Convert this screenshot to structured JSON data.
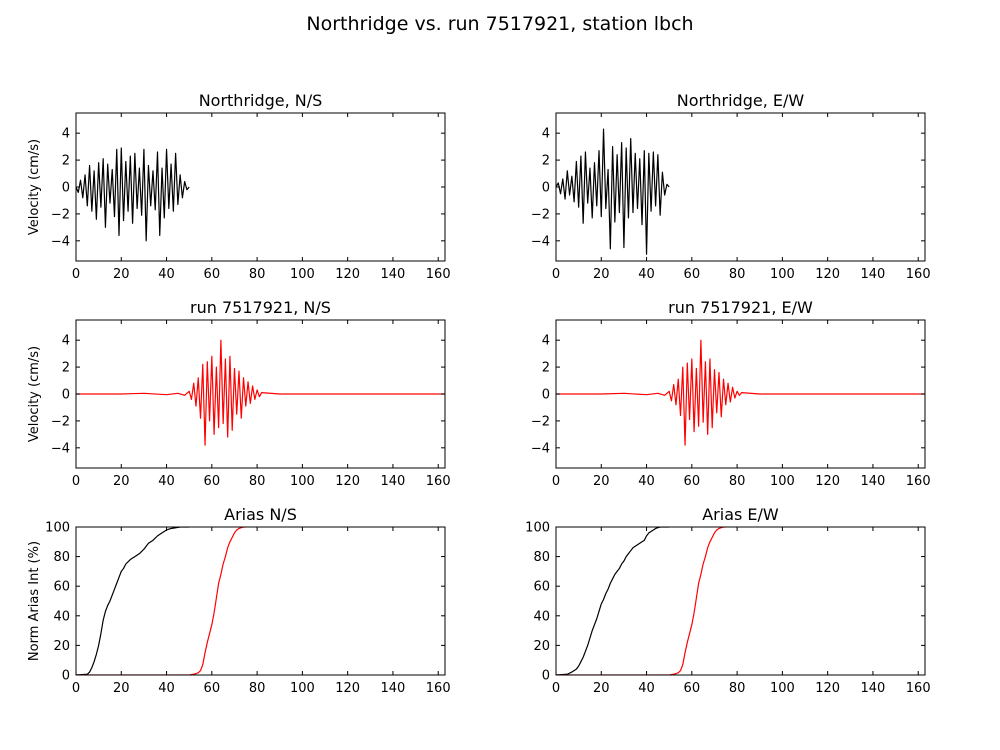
{
  "figure": {
    "title": "Northridge vs. run 7517921, station lbch"
  },
  "colors": {
    "recorded": "#000000",
    "simulated": "#ff0000",
    "axes": "#000000",
    "background": "#ffffff"
  },
  "chart_data": [
    {
      "type": "line",
      "title": "Northridge, N/S",
      "xlabel": "",
      "ylabel": "Velocity (cm/s)",
      "xlim": [
        0,
        163
      ],
      "ylim": [
        -5.5,
        5.5
      ],
      "xticks": [
        0,
        20,
        40,
        60,
        80,
        100,
        120,
        140,
        160
      ],
      "yticks": [
        -4,
        -2,
        0,
        2,
        4
      ],
      "grid": false,
      "legend": "none",
      "series": [
        {
          "color": "#000000",
          "x": [
            0,
            1,
            2,
            3,
            4,
            5,
            6,
            7,
            8,
            9,
            10,
            11,
            12,
            13,
            14,
            15,
            16,
            17,
            18,
            19,
            20,
            21,
            22,
            23,
            24,
            25,
            26,
            27,
            28,
            29,
            30,
            31,
            32,
            33,
            34,
            35,
            36,
            37,
            38,
            39,
            40,
            41,
            42,
            43,
            44,
            45,
            46,
            47,
            48,
            49,
            50
          ],
          "y": [
            0,
            -0.4,
            0.5,
            -0.8,
            0.9,
            -1.4,
            1.6,
            -1.8,
            1.2,
            -2.4,
            1.8,
            -1.5,
            2.1,
            -3.0,
            1.7,
            -1.2,
            1.3,
            -2.2,
            2.8,
            -3.6,
            2.9,
            -2.5,
            1.9,
            -1.8,
            2.3,
            -2.7,
            2.5,
            -1.6,
            1.4,
            -2.1,
            2.8,
            -4.0,
            1.6,
            -1.4,
            1.2,
            -1.7,
            2.6,
            -3.6,
            1.4,
            -2.3,
            2.8,
            -1.6,
            1.7,
            -1.8,
            2.5,
            -1.3,
            0.9,
            -0.8,
            0.4,
            -0.2,
            0.0
          ]
        }
      ]
    },
    {
      "type": "line",
      "title": "Northridge, E/W",
      "xlabel": "",
      "ylabel": "",
      "xlim": [
        0,
        163
      ],
      "ylim": [
        -5.5,
        5.5
      ],
      "xticks": [
        0,
        20,
        40,
        60,
        80,
        100,
        120,
        140,
        160
      ],
      "yticks": [
        -4,
        -2,
        0,
        2,
        4
      ],
      "grid": false,
      "legend": "none",
      "series": [
        {
          "color": "#000000",
          "x": [
            0,
            1,
            2,
            3,
            4,
            5,
            6,
            7,
            8,
            9,
            10,
            11,
            12,
            13,
            14,
            15,
            16,
            17,
            18,
            19,
            20,
            21,
            22,
            23,
            24,
            25,
            26,
            27,
            28,
            29,
            30,
            31,
            32,
            33,
            34,
            35,
            36,
            37,
            38,
            39,
            40,
            41,
            42,
            43,
            44,
            45,
            46,
            47,
            48,
            49,
            50
          ],
          "y": [
            0,
            0.3,
            -0.5,
            0.6,
            -0.9,
            1.2,
            -0.6,
            0.8,
            -1.1,
            1.9,
            -1.5,
            2.3,
            -2.7,
            2.6,
            -1.2,
            1.4,
            -2.3,
            1.8,
            -1.4,
            2.7,
            -2.2,
            4.3,
            -1.6,
            1.3,
            -4.6,
            3.0,
            -2.6,
            2.4,
            -1.9,
            3.3,
            -4.5,
            2.9,
            -2.3,
            3.6,
            -1.9,
            2.5,
            -1.6,
            2.1,
            -2.8,
            2.7,
            -5.0,
            2.5,
            -1.8,
            2.6,
            -1.4,
            2.4,
            -2.1,
            1.1,
            -0.6,
            0.2,
            0.0
          ]
        }
      ]
    },
    {
      "type": "line",
      "title": "run 7517921, N/S",
      "xlabel": "",
      "ylabel": "Velocity (cm/s)",
      "xlim": [
        0,
        163
      ],
      "ylim": [
        -5.5,
        5.5
      ],
      "xticks": [
        0,
        20,
        40,
        60,
        80,
        100,
        120,
        140,
        160
      ],
      "yticks": [
        -4,
        -2,
        0,
        2,
        4
      ],
      "grid": false,
      "legend": "none",
      "series": [
        {
          "color": "#ff0000",
          "x": [
            0,
            20,
            30,
            40,
            45,
            48,
            50,
            51,
            52,
            53,
            54,
            55,
            56,
            57,
            58,
            59,
            60,
            61,
            62,
            63,
            64,
            65,
            66,
            67,
            68,
            69,
            70,
            71,
            72,
            73,
            74,
            75,
            76,
            77,
            78,
            79,
            80,
            81,
            82,
            90,
            100,
            120,
            140,
            163
          ],
          "y": [
            0,
            0.0,
            0.05,
            -0.05,
            0.05,
            -0.1,
            0.2,
            -0.4,
            0.8,
            -0.9,
            1.2,
            -1.8,
            2.2,
            -3.8,
            2.4,
            -2.0,
            2.8,
            -3.0,
            2.0,
            -2.5,
            4.0,
            -2.2,
            2.6,
            -3.2,
            2.8,
            -2.7,
            1.9,
            -1.5,
            1.7,
            -1.8,
            1.2,
            -0.9,
            0.9,
            -0.7,
            0.6,
            -0.4,
            0.3,
            -0.2,
            0.1,
            0.0,
            0.0,
            0.0,
            0.0,
            0.0
          ]
        }
      ]
    },
    {
      "type": "line",
      "title": "run 7517921, E/W",
      "xlabel": "",
      "ylabel": "",
      "xlim": [
        0,
        163
      ],
      "ylim": [
        -5.5,
        5.5
      ],
      "xticks": [
        0,
        20,
        40,
        60,
        80,
        100,
        120,
        140,
        160
      ],
      "yticks": [
        -4,
        -2,
        0,
        2,
        4
      ],
      "grid": false,
      "legend": "none",
      "series": [
        {
          "color": "#ff0000",
          "x": [
            0,
            20,
            30,
            40,
            45,
            48,
            50,
            51,
            52,
            53,
            54,
            55,
            56,
            57,
            58,
            59,
            60,
            61,
            62,
            63,
            64,
            65,
            66,
            67,
            68,
            69,
            70,
            71,
            72,
            73,
            74,
            75,
            76,
            77,
            78,
            79,
            80,
            81,
            82,
            90,
            100,
            120,
            140,
            163
          ],
          "y": [
            0,
            0.0,
            0.05,
            -0.05,
            0.05,
            -0.1,
            0.2,
            -0.5,
            0.7,
            -0.8,
            1.1,
            -1.6,
            2.0,
            -3.8,
            2.3,
            -1.9,
            2.6,
            -2.8,
            1.9,
            -2.4,
            4.0,
            -2.1,
            2.4,
            -3.0,
            2.6,
            -2.5,
            1.8,
            -1.4,
            1.6,
            -1.7,
            1.1,
            -0.8,
            0.8,
            -0.6,
            0.5,
            -0.3,
            0.2,
            -0.1,
            0.1,
            0.0,
            0.0,
            0.0,
            0.0,
            0.0
          ]
        }
      ]
    },
    {
      "type": "line",
      "title": "Arias N/S",
      "xlabel": "",
      "ylabel": "Norm Arias Int (%)",
      "xlim": [
        0,
        163
      ],
      "ylim": [
        0,
        100
      ],
      "xticks": [
        0,
        20,
        40,
        60,
        80,
        100,
        120,
        140,
        160
      ],
      "yticks": [
        0,
        20,
        40,
        60,
        80,
        100
      ],
      "grid": false,
      "legend": "none",
      "series": [
        {
          "color": "#000000",
          "x": [
            0,
            5,
            6,
            7,
            8,
            9,
            10,
            11,
            12,
            13,
            14,
            15,
            16,
            17,
            18,
            19,
            20,
            21,
            22,
            24,
            26,
            28,
            30,
            32,
            34,
            36,
            38,
            40,
            42,
            44,
            46,
            48,
            50
          ],
          "y": [
            0,
            0.5,
            2,
            5,
            9,
            14,
            20,
            28,
            37,
            43,
            47,
            50,
            54,
            58,
            62,
            66,
            70,
            72,
            75,
            78,
            80,
            82,
            85,
            89,
            91,
            94,
            96,
            98,
            99,
            99.5,
            100,
            100,
            100
          ]
        },
        {
          "color": "#ff0000",
          "x": [
            0,
            20,
            40,
            50,
            52,
            54,
            55,
            56,
            57,
            58,
            59,
            60,
            61,
            62,
            63,
            64,
            65,
            66,
            67,
            68,
            69,
            70,
            71,
            72,
            73,
            74,
            75
          ],
          "y": [
            0,
            0,
            0,
            0,
            0.5,
            1.5,
            3,
            7,
            15,
            22,
            28,
            34,
            42,
            52,
            62,
            68,
            75,
            80,
            86,
            90,
            93,
            96,
            98,
            99,
            99.5,
            100,
            100
          ]
        }
      ]
    },
    {
      "type": "line",
      "title": "Arias E/W",
      "xlabel": "",
      "ylabel": "",
      "xlim": [
        0,
        163
      ],
      "ylim": [
        0,
        100
      ],
      "xticks": [
        0,
        20,
        40,
        60,
        80,
        100,
        120,
        140,
        160
      ],
      "yticks": [
        0,
        20,
        40,
        60,
        80,
        100
      ],
      "grid": false,
      "legend": "none",
      "series": [
        {
          "color": "#000000",
          "x": [
            0,
            5,
            7,
            9,
            10,
            11,
            12,
            13,
            14,
            15,
            16,
            17,
            18,
            19,
            20,
            21,
            22,
            23,
            24,
            25,
            26,
            27,
            28,
            29,
            30,
            31,
            32,
            33,
            34,
            35,
            36,
            37,
            38,
            39,
            40,
            41,
            42,
            43,
            44,
            45,
            46,
            47,
            48,
            50
          ],
          "y": [
            0,
            0.5,
            2,
            4,
            6,
            9,
            12,
            16,
            20,
            25,
            30,
            34,
            38,
            43,
            48,
            51,
            55,
            58,
            62,
            65,
            68,
            70,
            72,
            75,
            77,
            80,
            82,
            84,
            86,
            87,
            88,
            89,
            90,
            91,
            94,
            96,
            97,
            98,
            99,
            99.5,
            100,
            100,
            100,
            100
          ]
        },
        {
          "color": "#ff0000",
          "x": [
            0,
            20,
            40,
            50,
            52,
            54,
            55,
            56,
            57,
            58,
            59,
            60,
            61,
            62,
            63,
            64,
            65,
            66,
            67,
            68,
            69,
            70,
            71,
            72,
            73,
            74,
            75
          ],
          "y": [
            0,
            0,
            0,
            0,
            0.5,
            1.5,
            3,
            7,
            15,
            22,
            28,
            34,
            42,
            52,
            62,
            68,
            75,
            80,
            86,
            90,
            93,
            96,
            98,
            99,
            99.5,
            100,
            100
          ]
        }
      ]
    }
  ]
}
